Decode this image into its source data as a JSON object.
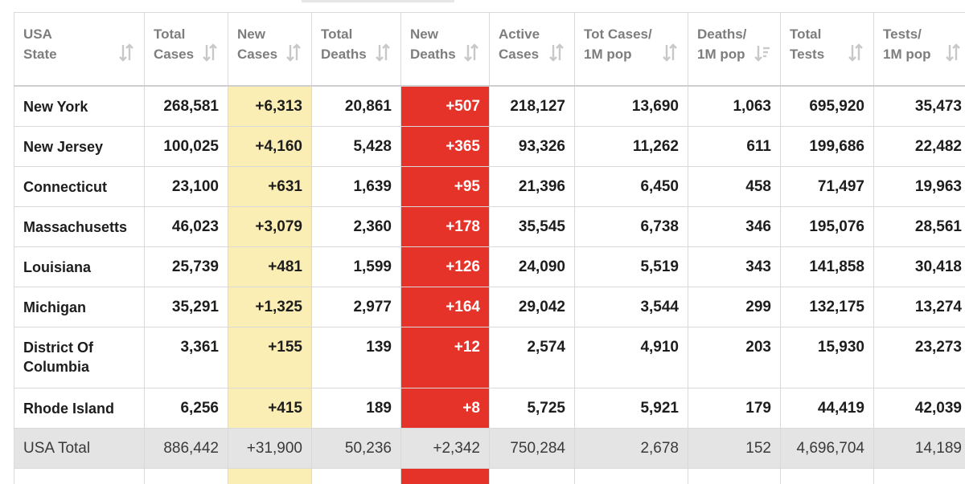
{
  "columns": [
    {
      "key": "state",
      "line1": "USA",
      "line2": "State"
    },
    {
      "key": "total_cases",
      "line1": "Total",
      "line2": "Cases"
    },
    {
      "key": "new_cases",
      "line1": "New",
      "line2": "Cases"
    },
    {
      "key": "total_deaths",
      "line1": "Total",
      "line2": "Deaths"
    },
    {
      "key": "new_deaths",
      "line1": "New",
      "line2": "Deaths"
    },
    {
      "key": "active_cases",
      "line1": "Active",
      "line2": "Cases"
    },
    {
      "key": "tot_cases_1m",
      "line1": "Tot Cases/",
      "line2": "1M pop"
    },
    {
      "key": "deaths_1m",
      "line1": "Deaths/",
      "line2": "1M pop",
      "sorted": "desc"
    },
    {
      "key": "total_tests",
      "line1": "Total",
      "line2": "Tests"
    },
    {
      "key": "tests_1m",
      "line1": "Tests/",
      "line2": "1M pop"
    }
  ],
  "rows": [
    {
      "state": [
        "New York"
      ],
      "total_cases": "268,581",
      "new_cases": "+6,313",
      "total_deaths": "20,861",
      "new_deaths": "+507",
      "active_cases": "218,127",
      "tot_cases_1m": "13,690",
      "deaths_1m": "1,063",
      "total_tests": "695,920",
      "tests_1m": "35,473"
    },
    {
      "state": [
        "New Jersey"
      ],
      "total_cases": "100,025",
      "new_cases": "+4,160",
      "total_deaths": "5,428",
      "new_deaths": "+365",
      "active_cases": "93,326",
      "tot_cases_1m": "11,262",
      "deaths_1m": "611",
      "total_tests": "199,686",
      "tests_1m": "22,482"
    },
    {
      "state": [
        "Connecticut"
      ],
      "total_cases": "23,100",
      "new_cases": "+631",
      "total_deaths": "1,639",
      "new_deaths": "+95",
      "active_cases": "21,396",
      "tot_cases_1m": "6,450",
      "deaths_1m": "458",
      "total_tests": "71,497",
      "tests_1m": "19,963"
    },
    {
      "state": [
        "Massachusetts"
      ],
      "total_cases": "46,023",
      "new_cases": "+3,079",
      "total_deaths": "2,360",
      "new_deaths": "+178",
      "active_cases": "35,545",
      "tot_cases_1m": "6,738",
      "deaths_1m": "346",
      "total_tests": "195,076",
      "tests_1m": "28,561"
    },
    {
      "state": [
        "Louisiana"
      ],
      "total_cases": "25,739",
      "new_cases": "+481",
      "total_deaths": "1,599",
      "new_deaths": "+126",
      "active_cases": "24,090",
      "tot_cases_1m": "5,519",
      "deaths_1m": "343",
      "total_tests": "141,858",
      "tests_1m": "30,418"
    },
    {
      "state": [
        "Michigan"
      ],
      "total_cases": "35,291",
      "new_cases": "+1,325",
      "total_deaths": "2,977",
      "new_deaths": "+164",
      "active_cases": "29,042",
      "tot_cases_1m": "3,544",
      "deaths_1m": "299",
      "total_tests": "132,175",
      "tests_1m": "13,274"
    },
    {
      "state": [
        "District Of",
        "Columbia"
      ],
      "total_cases": "3,361",
      "new_cases": "+155",
      "total_deaths": "139",
      "new_deaths": "+12",
      "active_cases": "2,574",
      "tot_cases_1m": "4,910",
      "deaths_1m": "203",
      "total_tests": "15,930",
      "tests_1m": "23,273"
    },
    {
      "state": [
        "Rhode Island"
      ],
      "total_cases": "6,256",
      "new_cases": "+415",
      "total_deaths": "189",
      "new_deaths": "+8",
      "active_cases": "5,725",
      "tot_cases_1m": "5,921",
      "deaths_1m": "179",
      "total_tests": "44,419",
      "tests_1m": "42,039"
    }
  ],
  "total_row": {
    "state": [
      "USA Total"
    ],
    "total_cases": "886,442",
    "new_cases": "+31,900",
    "total_deaths": "50,236",
    "new_deaths": "+2,342",
    "active_cases": "750,284",
    "tot_cases_1m": "2,678",
    "deaths_1m": "152",
    "total_tests": "4,696,704",
    "tests_1m": "14,189"
  },
  "colors": {
    "new_cases_bg": "#fbeeb4",
    "new_deaths_bg": "#e6332a",
    "total_row_bg": "#e4e4e4",
    "header_text": "#7d7d7d"
  },
  "icons": {
    "sort": "sort-arrows-icon",
    "sorted": "sort-descending-icon"
  }
}
